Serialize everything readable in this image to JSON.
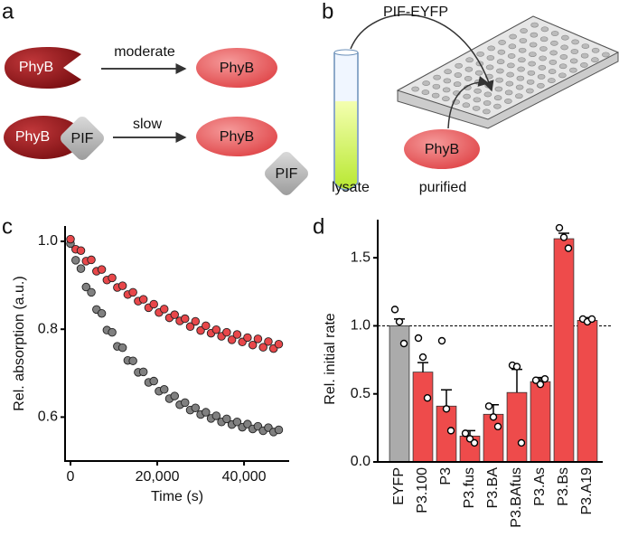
{
  "labels": [
    "a",
    "b",
    "c",
    "d"
  ],
  "diagram_a": {
    "phyb_dark_1": "PhyB",
    "arrow_1": "moderate",
    "phyb_1": "PhyB",
    "phyb_dark_2": "PhyB",
    "pif_bound": "PIF",
    "arrow_2": "slow",
    "phyb_2": "PhyB",
    "pif_free": "PIF"
  },
  "diagram_b": {
    "arrow": "PIF-EYFP",
    "tube": "lysate",
    "phyb": "PhyB",
    "phyb_label": "purified"
  },
  "chart_data": [
    {
      "type": "scatter",
      "xlabel": "Time (s)",
      "ylabel": "Rel. absorption (a.u.)",
      "xlim": [
        -1250,
        50400
      ],
      "ylim": [
        0.5,
        1.035
      ],
      "xticks": [
        0,
        {
          "value": 20000,
          "label": "20,000"
        },
        {
          "value": 40000,
          "label": "40,000"
        }
      ],
      "yticks": [
        0.6,
        0.8,
        {
          "value": 1.0,
          "label": "1.0"
        }
      ],
      "x": [
        0,
        1200,
        2400,
        3600,
        4800,
        6000,
        7200,
        8400,
        9600,
        10800,
        12000,
        13200,
        14400,
        15600,
        16800,
        18000,
        19200,
        20400,
        21600,
        22800,
        24000,
        25200,
        26400,
        27600,
        28800,
        30000,
        31200,
        32400,
        33600,
        34800,
        36000,
        37200,
        38400,
        39600,
        40800,
        42000,
        43200,
        44400,
        45600,
        46800,
        48000
      ],
      "series": [
        {
          "color": "#e8474a",
          "values": [
            1.005,
            0.982,
            0.979,
            0.955,
            0.958,
            0.932,
            0.936,
            0.912,
            0.917,
            0.895,
            0.899,
            0.879,
            0.884,
            0.864,
            0.868,
            0.849,
            0.857,
            0.838,
            0.846,
            0.826,
            0.833,
            0.819,
            0.824,
            0.806,
            0.818,
            0.797,
            0.808,
            0.791,
            0.799,
            0.784,
            0.793,
            0.776,
            0.788,
            0.771,
            0.781,
            0.764,
            0.778,
            0.759,
            0.772,
            0.756,
            0.766
          ]
        },
        {
          "color": "#808080",
          "values": [
            0.995,
            0.957,
            0.938,
            0.896,
            0.884,
            0.845,
            0.836,
            0.798,
            0.793,
            0.761,
            0.758,
            0.729,
            0.728,
            0.702,
            0.703,
            0.679,
            0.682,
            0.659,
            0.663,
            0.642,
            0.648,
            0.628,
            0.633,
            0.616,
            0.621,
            0.606,
            0.611,
            0.597,
            0.603,
            0.589,
            0.596,
            0.583,
            0.589,
            0.577,
            0.584,
            0.573,
            0.579,
            0.569,
            0.576,
            0.566,
            0.571
          ]
        }
      ]
    },
    {
      "type": "bar",
      "ylabel": "Rel. initial rate",
      "categories": [
        "EYFP",
        "P3.100",
        "P3",
        "P3.fus",
        "P3.BA",
        "P3.BAfus",
        "P3.As",
        "P3.Bs",
        "P3.A19"
      ],
      "values": [
        1.0,
        0.66,
        0.41,
        0.19,
        0.35,
        0.51,
        0.59,
        1.64,
        1.04
      ],
      "errors": [
        0.05,
        0.07,
        0.12,
        0.04,
        0.07,
        0.17,
        0.03,
        0.04,
        0.02
      ],
      "points": [
        [
          1.12,
          1.03,
          0.87
        ],
        [
          0.91,
          0.77,
          0.47
        ],
        [
          0.89,
          0.39,
          0.23
        ],
        [
          0.21,
          0.17,
          0.14
        ],
        [
          0.41,
          0.33,
          0.26
        ],
        [
          0.71,
          0.7,
          0.14
        ],
        [
          0.6,
          0.57,
          0.61
        ],
        [
          1.72,
          1.65,
          1.57
        ],
        [
          1.05,
          1.03,
          1.05
        ]
      ],
      "colors": [
        "#ababab",
        "#ee4b4b",
        "#ee4b4b",
        "#ee4b4b",
        "#ee4b4b",
        "#ee4b4b",
        "#ee4b4b",
        "#ee4b4b",
        "#ee4b4b"
      ],
      "ylim": [
        0,
        1.78
      ],
      "yticks": [
        {
          "value": 0,
          "label": "0.0"
        },
        0.5,
        {
          "value": 1.0,
          "label": "1.0"
        },
        1.5
      ],
      "reference_line": 1.0
    }
  ]
}
